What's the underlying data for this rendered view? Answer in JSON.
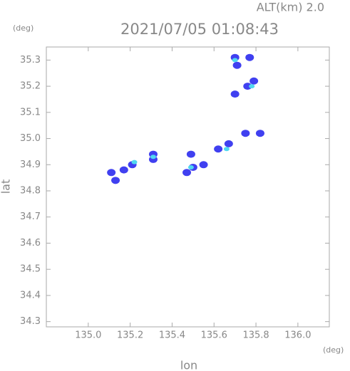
{
  "chart_data": {
    "type": "scatter",
    "title": "2021/07/05 01:08:43",
    "subtitle": "ALT(km) 2.0",
    "x_label": "lon",
    "y_label": "lat",
    "x_unit": "(deg)",
    "y_unit": "(deg)",
    "xlim": [
      134.8,
      136.15
    ],
    "ylim": [
      34.28,
      35.35
    ],
    "xticks": [
      {
        "value": 135,
        "label": "135.0"
      },
      135.2,
      135.4,
      135.6,
      135.8,
      {
        "value": 136,
        "label": "136.0"
      }
    ],
    "yticks": [
      34.3,
      34.4,
      34.5,
      34.6,
      34.7,
      34.8,
      34.9,
      {
        "value": 35,
        "label": "35.0"
      },
      35.1,
      35.2,
      35.3
    ],
    "series": [
      {
        "color": "#4040f0",
        "x": [
          135.7,
          135.71,
          135.77,
          135.79,
          135.76,
          135.7,
          135.75,
          135.82,
          135.67,
          135.62,
          135.49,
          135.5,
          135.55,
          135.47,
          135.31,
          135.31,
          135.21,
          135.17,
          135.13,
          135.11
        ],
        "values": [
          35.31,
          35.28,
          35.31,
          35.22,
          35.2,
          35.17,
          35.02,
          35.02,
          34.98,
          34.96,
          34.94,
          34.89,
          34.9,
          34.87,
          34.94,
          34.92,
          34.9,
          34.88,
          34.84,
          34.87
        ]
      },
      {
        "color": "#50d8f0",
        "x": [
          135.7,
          135.78,
          135.31,
          135.22,
          135.49,
          135.66
        ],
        "values": [
          35.3,
          35.2,
          34.93,
          34.91,
          34.89,
          34.96
        ]
      }
    ]
  }
}
